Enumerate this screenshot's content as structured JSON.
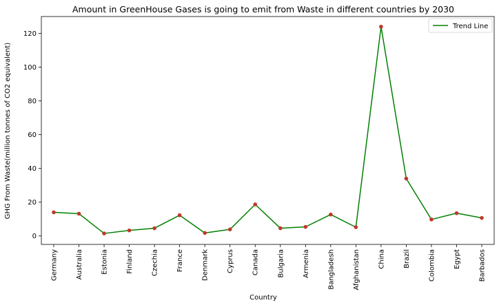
{
  "chart_data": {
    "type": "line",
    "title": "Amount in GreenHouse Gases is going to emit from Waste in different countries by 2030",
    "xlabel": "Country",
    "ylabel": "GHG From Waste(million tonnes of CO2 equivalent)",
    "categories": [
      "Germany",
      "Australia",
      "Estonia",
      "Finland",
      "Czechia",
      "France",
      "Denmark",
      "Cyprus",
      "Canada",
      "Bulgaria",
      "Armenia",
      "Bangladesh",
      "Afghanistan",
      "China",
      "Brazil",
      "Colombia",
      "Egypt",
      "Barbados"
    ],
    "series": [
      {
        "name": "Trend Line",
        "values": [
          14.0,
          13.2,
          1.5,
          3.3,
          4.6,
          12.3,
          1.8,
          3.9,
          18.7,
          4.6,
          5.4,
          12.7,
          5.2,
          124.0,
          34.0,
          9.8,
          13.5,
          10.7
        ],
        "line_color": "#008000",
        "marker_color": "#c0392b"
      }
    ],
    "ylim": [
      -5,
      130
    ],
    "yticks": [
      0,
      20,
      40,
      60,
      80,
      100,
      120
    ],
    "grid": false,
    "legend_position": "top-right"
  }
}
